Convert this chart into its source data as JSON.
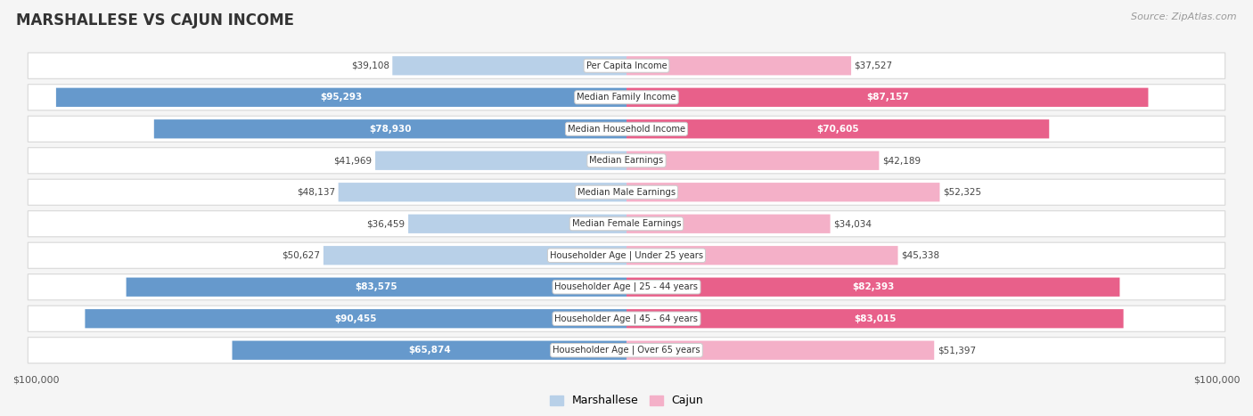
{
  "title": "MARSHALLESE VS CAJUN INCOME",
  "source": "Source: ZipAtlas.com",
  "categories": [
    "Per Capita Income",
    "Median Family Income",
    "Median Household Income",
    "Median Earnings",
    "Median Male Earnings",
    "Median Female Earnings",
    "Householder Age | Under 25 years",
    "Householder Age | 25 - 44 years",
    "Householder Age | 45 - 64 years",
    "Householder Age | Over 65 years"
  ],
  "marshallese": [
    39108,
    95293,
    78930,
    41969,
    48137,
    36459,
    50627,
    83575,
    90455,
    65874
  ],
  "cajun": [
    37527,
    87157,
    70605,
    42189,
    52325,
    34034,
    45338,
    82393,
    83015,
    51397
  ],
  "max_val": 100000,
  "bar_color_marshallese_light": "#b8d0e8",
  "bar_color_marshallese_dark": "#6699cc",
  "bar_color_cajun_light": "#f4b0c8",
  "bar_color_cajun_dark": "#e8608a",
  "marshallese_threshold": 0.55,
  "cajun_threshold": 0.55,
  "row_bg": "#efefef",
  "row_border": "#d8d8d8",
  "white": "#ffffff",
  "dark_label": "#444444",
  "white_label": "#ffffff",
  "axis_label_left": "$100,000",
  "axis_label_right": "$100,000",
  "legend_marshallese": "Marshallese",
  "legend_cajun": "Cajun",
  "bg_color": "#f5f5f5"
}
